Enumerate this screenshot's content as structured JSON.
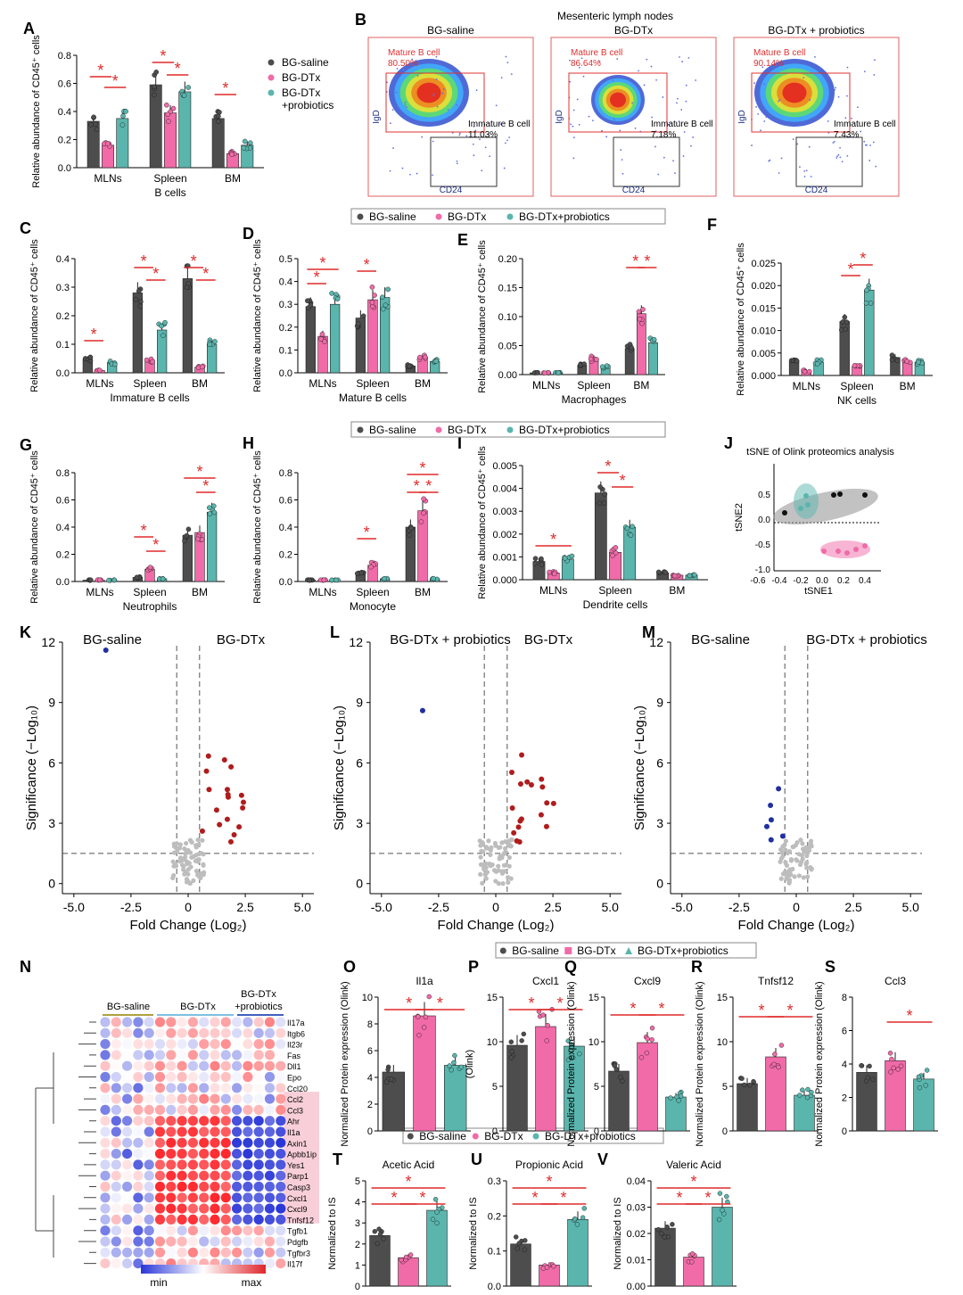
{
  "colors": {
    "saline": "#4d4d4d",
    "dtx": "#f06ba8",
    "pro": "#5ab5ad",
    "sig": "#e02a2a",
    "hmBlue": "#2a36d8",
    "hmRed": "#e0262b",
    "gray": "#bdbdbd"
  },
  "legend": {
    "saline": "BG-saline",
    "dtx": "BG-DTx",
    "pro": "BG-DTx+probiotics",
    "pro_split_1": "BG-DTx",
    "pro_split_2": "+probiotics"
  },
  "common": {
    "y_label": "Relative abundance of CD45⁺ cells",
    "star": "*",
    "groups": [
      "MLNs",
      "Spleen",
      "BM"
    ]
  },
  "panel_letters": [
    "A",
    "B",
    "C",
    "D",
    "E",
    "F",
    "G",
    "H",
    "I",
    "J",
    "K",
    "L",
    "M",
    "N",
    "O",
    "P",
    "Q",
    "R",
    "S",
    "T",
    "U",
    "V"
  ],
  "panels": {
    "A": {
      "xlabel": "B cells",
      "ylim": [
        0,
        0.8
      ],
      "ticks": [
        "0.0",
        "0.2",
        "0.4",
        "0.6",
        "0.8"
      ],
      "means": [
        [
          0.33,
          0.16,
          0.35
        ],
        [
          0.59,
          0.39,
          0.54
        ],
        [
          0.35,
          0.1,
          0.16
        ]
      ]
    },
    "C": {
      "xlabel": "Immature B cells",
      "ylim": [
        0,
        0.4
      ],
      "ticks": [
        "0.0",
        "0.1",
        "0.2",
        "0.3",
        "0.4"
      ],
      "means": [
        [
          0.048,
          0.008,
          0.036
        ],
        [
          0.28,
          0.045,
          0.15
        ],
        [
          0.33,
          0.02,
          0.1
        ]
      ]
    },
    "D": {
      "xlabel": "Mature B cells",
      "ylim": [
        0,
        0.5
      ],
      "ticks": [
        "0.0",
        "0.1",
        "0.2",
        "0.3",
        "0.4",
        "0.5"
      ],
      "means": [
        [
          0.29,
          0.16,
          0.3
        ],
        [
          0.24,
          0.32,
          0.33
        ],
        [
          0.03,
          0.07,
          0.05
        ]
      ]
    },
    "E": {
      "xlabel": "Macrophages",
      "ylim": [
        0,
        0.2
      ],
      "ticks": [
        "0.00",
        "0.05",
        "0.10",
        "0.15",
        "0.20"
      ],
      "means": [
        [
          0.003,
          0.003,
          0.003
        ],
        [
          0.016,
          0.028,
          0.013
        ],
        [
          0.045,
          0.105,
          0.055
        ]
      ]
    },
    "F": {
      "xlabel": "NK cells",
      "ylim": [
        0,
        0.025
      ],
      "ticks": [
        "0.000",
        "0.005",
        "0.010",
        "0.015",
        "0.020",
        "0.025"
      ],
      "means": [
        [
          0.003,
          0.001,
          0.003
        ],
        [
          0.012,
          0.002,
          0.019
        ],
        [
          0.004,
          0.003,
          0.003
        ]
      ]
    },
    "G": {
      "xlabel": "Neutrophils",
      "ylim": [
        0,
        0.8
      ],
      "ticks": [
        "0.0",
        "0.2",
        "0.4",
        "0.6",
        "0.8"
      ],
      "means": [
        [
          0.01,
          0.01,
          0.01
        ],
        [
          0.03,
          0.09,
          0.02
        ],
        [
          0.34,
          0.36,
          0.51
        ]
      ]
    },
    "H": {
      "xlabel": "Monocyte",
      "ylim": [
        0,
        0.8
      ],
      "ticks": [
        "0.0",
        "0.2",
        "0.4",
        "0.6",
        "0.8"
      ],
      "means": [
        [
          0.01,
          0.01,
          0.01
        ],
        [
          0.06,
          0.12,
          0.02
        ],
        [
          0.4,
          0.52,
          0.02
        ]
      ]
    },
    "I": {
      "xlabel": "Dendrite cells",
      "ylim": [
        0,
        0.005
      ],
      "ticks": [
        "0.000",
        "0.001",
        "0.002",
        "0.003",
        "0.004",
        "0.005"
      ],
      "means": [
        [
          0.0008,
          0.0003,
          0.0009
        ],
        [
          0.0038,
          0.0012,
          0.0023
        ],
        [
          0.0003,
          0.0002,
          0.0002
        ]
      ]
    },
    "O": {
      "title": "Il1a",
      "ylabel": "Normalized Protein expression (Olink)",
      "ticks": [
        "0",
        "2",
        "4",
        "6",
        "8",
        "10"
      ],
      "means": [
        4.4,
        8.6,
        4.9
      ]
    },
    "P": {
      "title": "Cxcl1",
      "ylabel": "(Olink)",
      "ticks": [
        "0",
        "5",
        "10",
        "15"
      ],
      "means": [
        9.6,
        11.7,
        9.5
      ]
    },
    "Q": {
      "title": "Cxcl9",
      "ylabel": "Normalized Protein expression (Olink)",
      "ticks": [
        "0",
        "5",
        "10",
        "15"
      ],
      "means": [
        6.7,
        9.9,
        3.8
      ]
    },
    "R": {
      "title": "Tnfsf12",
      "ylabel": "Normalized Protein expression (Olink)",
      "ticks": [
        "0",
        "5",
        "10",
        "15"
      ],
      "means": [
        5.3,
        8.3,
        4.0
      ]
    },
    "S": {
      "title": "Ccl3",
      "ylabel": "Normalized Protein expression (Olink)",
      "ticks": [
        "0",
        "2",
        "4",
        "6",
        "8"
      ],
      "means": [
        3.5,
        4.2,
        3.1
      ]
    },
    "T": {
      "title": "Acetic Acid",
      "ylabel": "Normalized to IS",
      "ticks": [
        "0",
        "1",
        "2",
        "3",
        "4",
        "5"
      ],
      "means": [
        2.4,
        1.35,
        3.6
      ]
    },
    "U": {
      "title": "Propionic Acid",
      "ylabel": "Normalized to IS",
      "ticks": [
        "0.0",
        "0.1",
        "0.2",
        "0.3"
      ],
      "means": [
        0.12,
        0.06,
        0.19
      ]
    },
    "V": {
      "title": "Valeric Acid",
      "ylabel": "Normalized to IS",
      "ticks": [
        "0.00",
        "0.01",
        "0.02",
        "0.03",
        "0.04"
      ],
      "means": [
        0.022,
        0.011,
        0.03
      ]
    }
  },
  "flow": {
    "title": "Mesenteric lymph nodes",
    "panels": [
      {
        "title": "BG-saline",
        "mature": "Mature B cell",
        "mature_pct": "80.50%",
        "immature": "Immature B cell",
        "immature_pct": "11.03%"
      },
      {
        "title": "BG-DTx",
        "mature": "Mature B cell",
        "mature_pct": "86.64%",
        "immature": "Immature B cell",
        "immature_pct": "7.18%"
      },
      {
        "title": "BG-DTx + probiotics",
        "mature": "Mature B cell",
        "mature_pct": "90.14%",
        "immature": "Immature B cell",
        "immature_pct": "7.43%"
      }
    ],
    "xaxis": "CD24",
    "yaxis": "IgD"
  },
  "tsne": {
    "title": "tSNE of Olink proteomics analysis",
    "xlabel": "tSNE1",
    "ylabel": "tSNE2",
    "xticks": [
      "-0.6",
      "-0.4",
      "-0.2",
      "0.0",
      "0.2",
      "0.4"
    ],
    "yticks": [
      "0.5",
      "0.0",
      "-0.5",
      "-1.0"
    ]
  },
  "volcano": {
    "xlabel": "Fold Change (Log₂)",
    "ylabel": "Significance (−Log₁₀)",
    "xticks": [
      "-5.0",
      "-2.5",
      "0",
      "2.5",
      "5.0"
    ],
    "yticks": [
      "0",
      "3",
      "6",
      "9",
      "12"
    ],
    "K": {
      "left": "BG-saline",
      "right": "BG-DTx"
    },
    "L": {
      "left": "BG-DTx + probiotics",
      "right": "BG-DTx"
    },
    "M": {
      "left": "BG-saline",
      "right": "BG-DTx + probiotics"
    }
  },
  "heatmap": {
    "groups": [
      "BG-saline",
      "BG-DTx",
      "BG-DTx",
      "+probiotics"
    ],
    "genes": [
      "Il17a",
      "Itgb6",
      "Il23r",
      "Fas",
      "Dll1",
      "Epo",
      "Ccl20",
      "Ccl2",
      "Ccl3",
      "Ahr",
      "Il1a",
      "Axin1",
      "Apbb1ip",
      "Yes1",
      "Parp1",
      "Casp3",
      "Cxcl1",
      "Cxcl9",
      "Tnfsf12",
      "Tgfb1",
      "Pdgfb",
      "Tgfbr3",
      "Il17f"
    ],
    "min": "min",
    "max": "max"
  }
}
